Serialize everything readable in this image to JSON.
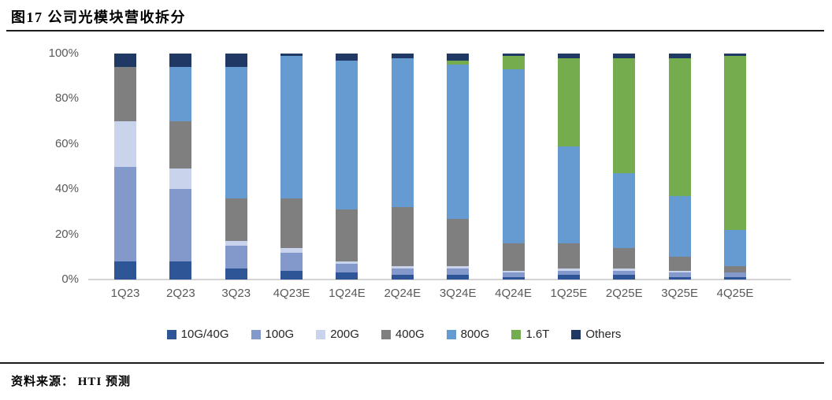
{
  "figure": {
    "title": "图17 公司光模块营收拆分",
    "source_label": "资料来源：",
    "source_value": "HTI 预测"
  },
  "chart_data": {
    "type": "bar",
    "stacked": true,
    "percent_stacked": true,
    "title": "图17 公司光模块营收拆分",
    "xlabel": "",
    "ylabel": "",
    "ylim": [
      0,
      100
    ],
    "yticks": [
      "0%",
      "20%",
      "40%",
      "60%",
      "80%",
      "100%"
    ],
    "grid": false,
    "legend_position": "bottom",
    "categories": [
      "1Q23",
      "2Q23",
      "3Q23",
      "4Q23E",
      "1Q24E",
      "2Q24E",
      "3Q24E",
      "4Q24E",
      "1Q25E",
      "2Q25E",
      "3Q25E",
      "4Q25E"
    ],
    "series": [
      {
        "name": "10G/40G",
        "color": "#2E5697",
        "values": [
          8,
          8,
          5,
          4,
          3,
          2,
          2,
          1,
          2,
          2,
          1,
          1
        ]
      },
      {
        "name": "100G",
        "color": "#8499CB",
        "values": [
          42,
          32,
          10,
          8,
          4,
          3,
          3,
          2,
          2,
          2,
          2,
          2
        ]
      },
      {
        "name": "200G",
        "color": "#C9D4EC",
        "values": [
          20,
          9,
          2,
          2,
          1,
          1,
          1,
          1,
          1,
          1,
          1,
          0
        ]
      },
      {
        "name": "400G",
        "color": "#7F7F7F",
        "values": [
          24,
          21,
          19,
          22,
          23,
          26,
          21,
          12,
          11,
          9,
          6,
          3
        ]
      },
      {
        "name": "800G",
        "color": "#669BD2",
        "values": [
          0,
          24,
          58,
          63,
          66,
          66,
          68,
          77,
          43,
          33,
          27,
          16
        ]
      },
      {
        "name": "1.6T",
        "color": "#74AC4E",
        "values": [
          0,
          0,
          0,
          0,
          0,
          0,
          2,
          6,
          39,
          51,
          61,
          77
        ]
      },
      {
        "name": "Others",
        "color": "#203864",
        "values": [
          6,
          6,
          6,
          1,
          3,
          2,
          3,
          1,
          2,
          2,
          2,
          1
        ]
      }
    ]
  }
}
